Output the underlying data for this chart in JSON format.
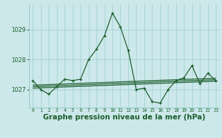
{
  "title": "Graphe pression niveau de la mer (hPa)",
  "x_labels": [
    "0",
    "1",
    "2",
    "3",
    "4",
    "5",
    "6",
    "7",
    "8",
    "9",
    "10",
    "11",
    "12",
    "13",
    "14",
    "15",
    "16",
    "17",
    "18",
    "19",
    "20",
    "21",
    "22",
    "23"
  ],
  "main_line": [
    1027.3,
    1027.0,
    1026.85,
    1027.1,
    1027.35,
    1027.3,
    1027.35,
    1028.0,
    1028.35,
    1028.8,
    1029.55,
    1029.1,
    1028.3,
    1027.0,
    1027.05,
    1026.6,
    1026.55,
    1027.0,
    1027.3,
    1027.4,
    1027.8,
    1027.2,
    1027.55,
    1027.3
  ],
  "trend_line1": [
    1027.05,
    1027.06,
    1027.07,
    1027.08,
    1027.09,
    1027.1,
    1027.11,
    1027.12,
    1027.13,
    1027.14,
    1027.15,
    1027.16,
    1027.17,
    1027.18,
    1027.19,
    1027.2,
    1027.21,
    1027.22,
    1027.23,
    1027.24,
    1027.25,
    1027.26,
    1027.27,
    1027.28
  ],
  "trend_line2": [
    1027.1,
    1027.11,
    1027.12,
    1027.13,
    1027.14,
    1027.15,
    1027.16,
    1027.17,
    1027.18,
    1027.19,
    1027.2,
    1027.21,
    1027.22,
    1027.23,
    1027.24,
    1027.25,
    1027.26,
    1027.27,
    1027.28,
    1027.29,
    1027.3,
    1027.31,
    1027.32,
    1027.33
  ],
  "trend_line3": [
    1027.15,
    1027.16,
    1027.17,
    1027.18,
    1027.19,
    1027.2,
    1027.21,
    1027.22,
    1027.23,
    1027.24,
    1027.25,
    1027.26,
    1027.27,
    1027.28,
    1027.29,
    1027.3,
    1027.31,
    1027.32,
    1027.33,
    1027.34,
    1027.35,
    1027.36,
    1027.37,
    1027.38
  ],
  "ylim": [
    1026.4,
    1029.85
  ],
  "yticks": [
    1027,
    1028,
    1029
  ],
  "bg_color": "#cce8ea",
  "grid_color": "#99cccc",
  "line_color": "#1a5c2a",
  "trend_color": "#1a5c2a",
  "title_color": "#1a5c2a",
  "title_fontsize": 7.5
}
